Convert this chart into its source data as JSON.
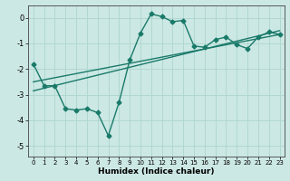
{
  "xlabel": "Humidex (Indice chaleur)",
  "ylabel": "",
  "background_color": "#cce8e4",
  "grid_color": "#b0d8d0",
  "line_color": "#1a7a6a",
  "xlim": [
    -0.5,
    23.5
  ],
  "ylim": [
    -5.4,
    0.5
  ],
  "yticks": [
    0,
    -1,
    -2,
    -3,
    -4,
    -5
  ],
  "xticks": [
    0,
    1,
    2,
    3,
    4,
    5,
    6,
    7,
    8,
    9,
    10,
    11,
    12,
    13,
    14,
    15,
    16,
    17,
    18,
    19,
    20,
    21,
    22,
    23
  ],
  "line1_x": [
    0,
    1,
    2,
    3,
    4,
    5,
    6,
    7,
    8,
    9,
    10,
    11,
    12,
    13,
    14,
    15,
    16,
    17,
    18,
    19,
    20,
    21,
    22,
    23
  ],
  "line1_y": [
    -1.8,
    -2.65,
    -2.65,
    -3.55,
    -3.6,
    -3.55,
    -3.7,
    -4.6,
    -3.3,
    -1.65,
    -0.6,
    0.15,
    0.05,
    -0.15,
    -0.1,
    -1.1,
    -1.15,
    -0.85,
    -0.75,
    -1.05,
    -1.2,
    -0.75,
    -0.55,
    -0.65
  ],
  "line3_x": [
    0,
    23
  ],
  "line3_y": [
    -2.5,
    -0.65
  ],
  "line4_x": [
    0,
    23
  ],
  "line4_y": [
    -2.85,
    -0.5
  ],
  "marker": "D",
  "markersize": 2.5,
  "linewidth": 1.0
}
